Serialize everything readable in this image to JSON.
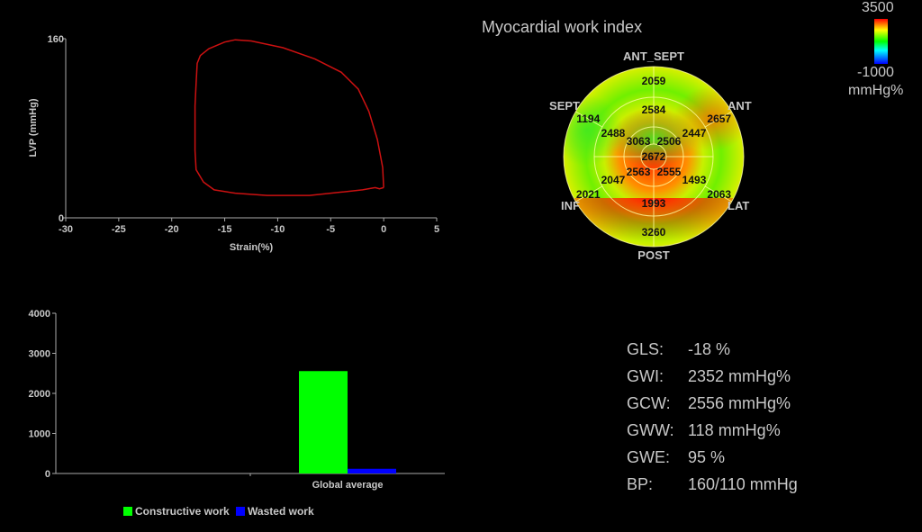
{
  "chart_data": [
    {
      "type": "line",
      "title": "",
      "xlabel": "Strain(%)",
      "ylabel": "LVP (mmHg)",
      "xlim": [
        -30,
        5
      ],
      "ylim": [
        0,
        160
      ],
      "x_ticks": [
        "-30",
        "-25",
        "-20",
        "-15",
        "-10",
        "-5",
        "0",
        "5"
      ],
      "y_ticks": [
        "0",
        "160"
      ],
      "series_color": "#cc1111",
      "series": [
        {
          "points": [
            [
              0,
              27
            ],
            [
              -0.1,
              45
            ],
            [
              -0.6,
              70
            ],
            [
              -1.4,
              95
            ],
            [
              -2.4,
              115
            ],
            [
              -4,
              130
            ],
            [
              -6.5,
              142
            ],
            [
              -9.5,
              152
            ],
            [
              -12.5,
              158
            ],
            [
              -14,
              159
            ],
            [
              -15,
              157
            ],
            [
              -16.5,
              151
            ],
            [
              -17.3,
              145
            ],
            [
              -17.6,
              138
            ],
            [
              -17.7,
              120
            ],
            [
              -17.8,
              100
            ],
            [
              -17.8,
              80
            ],
            [
              -17.8,
              60
            ],
            [
              -17.7,
              43
            ],
            [
              -17,
              32
            ],
            [
              -16,
              25
            ],
            [
              -14,
              22
            ],
            [
              -11,
              20
            ],
            [
              -7,
              20
            ],
            [
              -4,
              23
            ],
            [
              -2,
              25
            ],
            [
              -0.8,
              27
            ],
            [
              -0.4,
              26
            ],
            [
              0,
              27
            ]
          ]
        }
      ]
    },
    {
      "type": "bar",
      "title": "",
      "categories": [
        "",
        "Global average"
      ],
      "ylim": [
        0,
        4000
      ],
      "y_ticks": [
        "0",
        "1000",
        "2000",
        "3000",
        "4000"
      ],
      "series": [
        {
          "name": "Constructive work",
          "color": "#00ff00",
          "values": [
            null,
            2556
          ]
        },
        {
          "name": "Wasted work",
          "color": "#0000ff",
          "values": [
            null,
            118
          ]
        }
      ]
    },
    {
      "type": "heatmap",
      "title": "Myocardial work index",
      "wall_labels": [
        "ANT_SEPT",
        "ANT",
        "LAT",
        "POST",
        "INF",
        "SEPT"
      ],
      "segment_values": {
        "basal": [
          2059,
          2657,
          2063,
          3260,
          2021,
          1194
        ],
        "mid": [
          2584,
          2447,
          1493,
          1993,
          2047,
          2488
        ],
        "apical": [
          2506,
          2555,
          2563,
          3063
        ],
        "apex": 2672
      }
    }
  ],
  "color_scale": {
    "max": "3500",
    "min": "-1000",
    "unit": "mmHg%"
  },
  "stats": [
    {
      "label": "GLS:",
      "value": "-18 %"
    },
    {
      "label": "GWI:",
      "value": "2352 mmHg%"
    },
    {
      "label": "GCW:",
      "value": "2556 mmHg%"
    },
    {
      "label": "GWW:",
      "value": "118 mmHg%"
    },
    {
      "label": "GWE:",
      "value": "95 %"
    },
    {
      "label": "BP:",
      "value": "160/110 mmHg"
    }
  ]
}
